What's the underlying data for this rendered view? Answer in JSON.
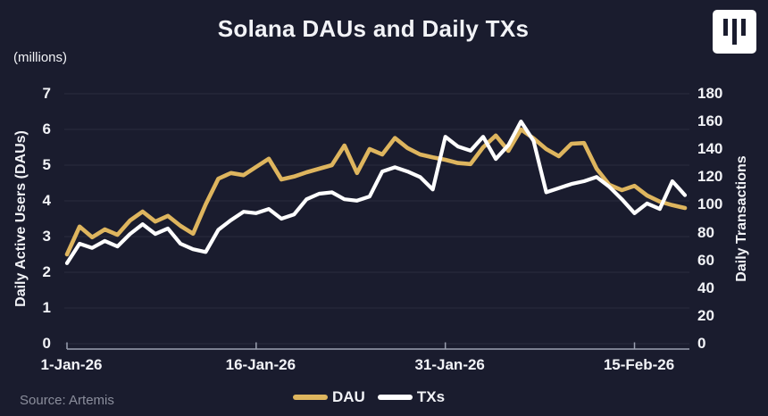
{
  "header": {
    "title": "Solana DAUs and Daily TXs"
  },
  "icons": {
    "brand_logo": "white-rounded-square-with-three-vertical-bars"
  },
  "footer": {
    "source": "Source: Artemis"
  },
  "colors": {
    "background": "#1A1C2E",
    "grid": "#2B2D3E",
    "axis": "#9BA0B0",
    "text": "#F2F3F7",
    "muted": "#8B8E9C",
    "dau": "#DEB55E",
    "txs": "#FFFFFF"
  },
  "chart_data": {
    "type": "line",
    "title": "Solana DAUs and Daily TXs",
    "grid": "horizontal",
    "legend_position": "bottom-center",
    "x_axis": {
      "frequency": "daily",
      "n_points": 50,
      "tick_labels": [
        "1-Jan-26",
        "16-Jan-26",
        "31-Jan-26",
        "15-Feb-26"
      ],
      "tick_point_indices": [
        0,
        15,
        30,
        45
      ]
    },
    "y_left": {
      "label": "Daily Active Users (DAUs)",
      "units_note": "(millions)",
      "range": [
        0,
        7
      ],
      "ticks": [
        0,
        1,
        2,
        3,
        4,
        5,
        6,
        7
      ]
    },
    "y_right": {
      "label": "Daily Transactions",
      "range": [
        0,
        180
      ],
      "ticks": [
        0,
        20,
        40,
        60,
        80,
        100,
        120,
        140,
        160,
        180
      ]
    },
    "series": [
      {
        "name": "DAU",
        "axis": "left",
        "color": "#DEB55E",
        "values": [
          2.5,
          3.28,
          2.98,
          3.2,
          3.05,
          3.45,
          3.7,
          3.42,
          3.58,
          3.3,
          3.08,
          3.9,
          4.62,
          4.78,
          4.72,
          4.95,
          5.18,
          4.6,
          4.68,
          4.8,
          4.9,
          5.0,
          5.55,
          4.78,
          5.45,
          5.3,
          5.76,
          5.48,
          5.3,
          5.22,
          5.15,
          5.06,
          5.03,
          5.5,
          5.83,
          5.4,
          6.0,
          5.75,
          5.45,
          5.25,
          5.6,
          5.62,
          4.9,
          4.45,
          4.3,
          4.42,
          4.15,
          3.98,
          3.88,
          3.8
        ]
      },
      {
        "name": "TXs",
        "axis": "right",
        "color": "#FFFFFF",
        "values": [
          58,
          72,
          69,
          74,
          70,
          79,
          86,
          79,
          83,
          72,
          68,
          66,
          82,
          89,
          95,
          94,
          97,
          90,
          93,
          104,
          108,
          109,
          104,
          103,
          106,
          124,
          127,
          124,
          120,
          111,
          149,
          142,
          139,
          149,
          133,
          143,
          160,
          146,
          109,
          112,
          115,
          117,
          120,
          113,
          104,
          94,
          101,
          97,
          117,
          107
        ]
      }
    ]
  }
}
